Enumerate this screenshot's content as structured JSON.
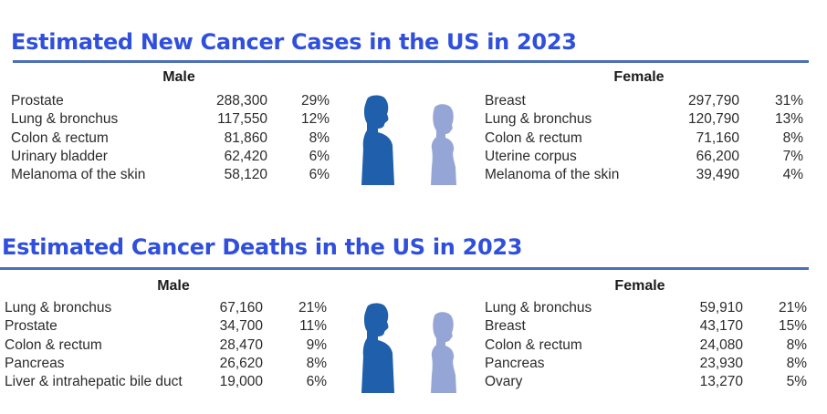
{
  "colors": {
    "title": "#2f4fdc",
    "rule": "#4a6fb5",
    "male_figure": "#1f5fab",
    "female_figure": "#95a6d6"
  },
  "new_cases": {
    "title": "Estimated New Cancer Cases in the US in 2023",
    "male_header": "Male",
    "female_header": "Female",
    "male": [
      {
        "site": "Prostate",
        "count": "288,300",
        "pct": "29%"
      },
      {
        "site": "Lung & bronchus",
        "count": "117,550",
        "pct": "12%"
      },
      {
        "site": "Colon & rectum",
        "count": "81,860",
        "pct": "8%"
      },
      {
        "site": "Urinary bladder",
        "count": "62,420",
        "pct": "6%"
      },
      {
        "site": "Melanoma of the skin",
        "count": "58,120",
        "pct": "6%"
      }
    ],
    "female": [
      {
        "site": "Breast",
        "count": "297,790",
        "pct": "31%"
      },
      {
        "site": "Lung & bronchus",
        "count": "120,790",
        "pct": "13%"
      },
      {
        "site": "Colon & rectum",
        "count": "71,160",
        "pct": "8%"
      },
      {
        "site": "Uterine corpus",
        "count": "66,200",
        "pct": "7%"
      },
      {
        "site": "Melanoma of the skin",
        "count": "39,490",
        "pct": "4%"
      }
    ]
  },
  "deaths": {
    "title": "Estimated Cancer Deaths in the US in 2023",
    "male_header": "Male",
    "female_header": "Female",
    "male": [
      {
        "site": "Lung & bronchus",
        "count": "67,160",
        "pct": "21%"
      },
      {
        "site": "Prostate",
        "count": "34,700",
        "pct": "11%"
      },
      {
        "site": "Colon & rectum",
        "count": "28,470",
        "pct": "9%"
      },
      {
        "site": "Pancreas",
        "count": "26,620",
        "pct": "8%"
      },
      {
        "site": "Liver & intrahepatic bile duct",
        "count": "19,000",
        "pct": "6%"
      }
    ],
    "female": [
      {
        "site": "Lung & bronchus",
        "count": "59,910",
        "pct": "21%"
      },
      {
        "site": "Breast",
        "count": "43,170",
        "pct": "15%"
      },
      {
        "site": "Colon & rectum",
        "count": "24,080",
        "pct": "8%"
      },
      {
        "site": "Pancreas",
        "count": "23,930",
        "pct": "8%"
      },
      {
        "site": "Ovary",
        "count": "13,270",
        "pct": "5%"
      }
    ]
  }
}
